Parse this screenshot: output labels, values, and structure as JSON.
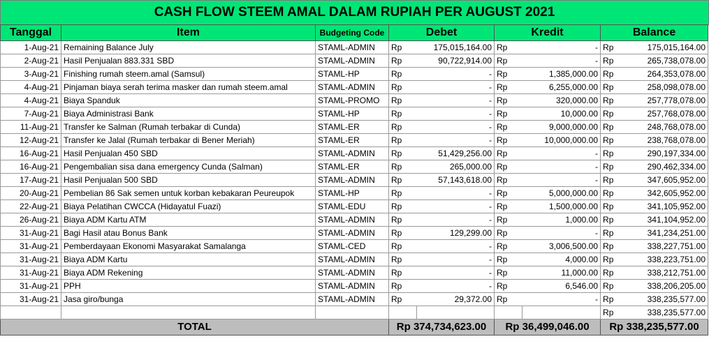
{
  "title": "CASH FLOW STEEM AMAL DALAM RUPIAH PER AUGUST 2021",
  "headers": {
    "date": "Tanggal",
    "item": "Item",
    "code": "Budgeting Code",
    "debet": "Debet",
    "kredit": "Kredit",
    "balance": "Balance"
  },
  "currency": "Rp",
  "rows": [
    {
      "date": "1-Aug-21",
      "item": "Remaining Balance July",
      "code": "STAML-ADMIN",
      "debet": "175,015,164.00",
      "kredit": "-",
      "balance": "175,015,164.00"
    },
    {
      "date": "2-Aug-21",
      "item": "Hasil Penjualan 883.331 SBD",
      "code": "STAML-ADMIN",
      "debet": "90,722,914.00",
      "kredit": "-",
      "balance": "265,738,078.00"
    },
    {
      "date": "3-Aug-21",
      "item": "Finishing rumah steem.amal (Samsul)",
      "code": "STAML-HP",
      "debet": "-",
      "kredit": "1,385,000.00",
      "balance": "264,353,078.00"
    },
    {
      "date": "4-Aug-21",
      "item": "Pinjaman biaya serah terima masker dan rumah steem.amal",
      "code": "STAML-ADMIN",
      "debet": "-",
      "kredit": "6,255,000.00",
      "balance": "258,098,078.00"
    },
    {
      "date": "4-Aug-21",
      "item": "Biaya Spanduk",
      "code": "STAML-PROMO",
      "debet": "-",
      "kredit": "320,000.00",
      "balance": "257,778,078.00"
    },
    {
      "date": "7-Aug-21",
      "item": "Biaya Administrasi Bank",
      "code": "STAML-HP",
      "debet": "-",
      "kredit": "10,000.00",
      "balance": "257,768,078.00"
    },
    {
      "date": "11-Aug-21",
      "item": "Transfer ke Salman (Rumah terbakar di Cunda)",
      "code": "STAML-ER",
      "debet": "-",
      "kredit": "9,000,000.00",
      "balance": "248,768,078.00"
    },
    {
      "date": "12-Aug-21",
      "item": "Transfer ke Jalal (Rumah terbakar di Bener Meriah)",
      "code": "STAML-ER",
      "debet": "-",
      "kredit": "10,000,000.00",
      "balance": "238,768,078.00"
    },
    {
      "date": "16-Aug-21",
      "item": "Hasil Penjualan 450 SBD",
      "code": "STAML-ADMIN",
      "debet": "51,429,256.00",
      "kredit": "-",
      "balance": "290,197,334.00"
    },
    {
      "date": "16-Aug-21",
      "item": "Pengembalian sisa dana emergency Cunda (Salman)",
      "code": "STAML-ER",
      "debet": "265,000.00",
      "kredit": "-",
      "balance": "290,462,334.00"
    },
    {
      "date": "17-Aug-21",
      "item": "Hasil Penjualan 500 SBD",
      "code": "STAML-ADMIN",
      "debet": "57,143,618.00",
      "kredit": "-",
      "balance": "347,605,952.00"
    },
    {
      "date": "20-Aug-21",
      "item": "Pembelian 86 Sak semen untuk korban kebakaran Peureupok",
      "code": "STAML-HP",
      "debet": "-",
      "kredit": "5,000,000.00",
      "balance": "342,605,952.00"
    },
    {
      "date": "22-Aug-21",
      "item": "Biaya Pelatihan CWCCA (Hidayatul Fuazi)",
      "code": "STAML-EDU",
      "debet": "-",
      "kredit": "1,500,000.00",
      "balance": "341,105,952.00"
    },
    {
      "date": "26-Aug-21",
      "item": "Biaya ADM Kartu ATM",
      "code": "STAML-ADMIN",
      "debet": "-",
      "kredit": "1,000.00",
      "balance": "341,104,952.00"
    },
    {
      "date": "31-Aug-21",
      "item": "Bagi Hasil atau Bonus Bank",
      "code": "STAML-ADMIN",
      "debet": "129,299.00",
      "kredit": "-",
      "balance": "341,234,251.00"
    },
    {
      "date": "31-Aug-21",
      "item": "Pemberdayaan Ekonomi Masyarakat Samalanga",
      "code": "STAML-CED",
      "debet": "-",
      "kredit": "3,006,500.00",
      "balance": "338,227,751.00"
    },
    {
      "date": "31-Aug-21",
      "item": "Biaya ADM Kartu",
      "code": "STAML-ADMIN",
      "debet": "-",
      "kredit": "4,000.00",
      "balance": "338,223,751.00"
    },
    {
      "date": "31-Aug-21",
      "item": "Biaya ADM Rekening",
      "code": "STAML-ADMIN",
      "debet": "-",
      "kredit": "11,000.00",
      "balance": "338,212,751.00"
    },
    {
      "date": "31-Aug-21",
      "item": "PPH",
      "code": "STAML-ADMIN",
      "debet": "-",
      "kredit": "6,546.00",
      "balance": "338,206,205.00"
    },
    {
      "date": "31-Aug-21",
      "item": "Jasa giro/bunga",
      "code": "STAML-ADMIN",
      "debet": "29,372.00",
      "kredit": "-",
      "balance": "338,235,577.00"
    }
  ],
  "extra_balance": "338,235,577.00",
  "total": {
    "label": "TOTAL",
    "debet": "Rp 374,734,623.00",
    "kredit": "Rp   36,499,046.00",
    "balance": "Rp 338,235,577.00"
  },
  "colors": {
    "header_bg": "#00e676",
    "total_bg": "#bdbdbd"
  }
}
